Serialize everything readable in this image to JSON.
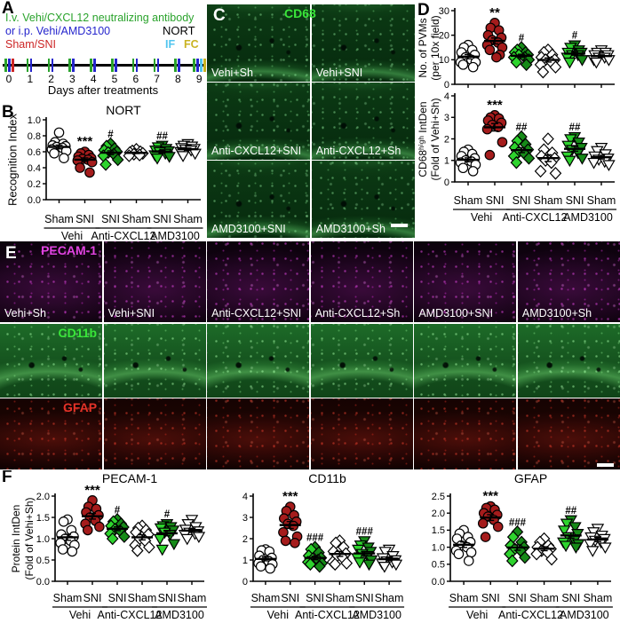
{
  "panel_a": {
    "label": "A",
    "line1": "I.v. Vehi/CXCL12 neutralizing antibody",
    "line2": "or i.p. Vehi/AMD3100",
    "nort_label": "NORT",
    "line3": "Sham/SNI",
    "if_label": "IF",
    "fc_label": "FC",
    "days": [
      "0",
      "1",
      "2",
      "3",
      "4",
      "5",
      "6",
      "7",
      "8",
      "9"
    ],
    "xlabel": "Days after treatments",
    "colors": {
      "antibody": "#2aa32c",
      "amd": "#2525cd",
      "sni": "#cc2525",
      "if_tick": "#52c5ef",
      "fc_tick": "#c9b322",
      "nort": "#000000"
    }
  },
  "panel_b": {
    "label": "B"
  },
  "panel_c": {
    "label": "C",
    "marker": "CD68",
    "marker_color": "#39e639",
    "tiles": [
      "Vehi+Sh",
      "Vehi+SNI",
      "Anti-CXCL12+SNI",
      "Anti-CXCL12+Sh",
      "AMD3100+SNI",
      "AMD3100+Sh"
    ]
  },
  "panel_d": {
    "label": "D"
  },
  "panel_e": {
    "label": "E",
    "row_markers": [
      {
        "name": "PECAM-1",
        "color": "#e243e2"
      },
      {
        "name": "CD11b",
        "color": "#39e639"
      },
      {
        "name": "GFAP",
        "color": "#e53228"
      }
    ],
    "tiles": [
      "Vehi+Sh",
      "Vehi+SNI",
      "Anti-CXCL12+SNI",
      "Anti-CXCL12+Sh",
      "AMD3100+SNI",
      "AMD3100+Sh"
    ]
  },
  "panel_f": {
    "label": "F"
  },
  "colors": {
    "sni_fill": "#a51c1c",
    "green_dark": "#168a18",
    "green_bright": "#2ed32e",
    "open": "#ffffff"
  },
  "xaxis_pairs": [
    {
      "cols": [
        "Sham",
        "SNI"
      ],
      "treatment": "Vehi"
    },
    {
      "cols": [
        "SNI",
        "Sham"
      ],
      "treatment": "Anti-CXCL12"
    },
    {
      "cols": [
        "SNI",
        "Sham"
      ],
      "treatment": "AMD3100"
    }
  ],
  "chart_data": [
    {
      "id": "nort",
      "type": "scatter",
      "title": "NORT",
      "ylabel_lines": [
        "Recognition Index"
      ],
      "ylim": [
        0,
        1.0
      ],
      "yticks": [
        0,
        0.2,
        0.4,
        0.6,
        0.8,
        1.0
      ],
      "decimals": 1,
      "groups": [
        {
          "name": "Vehi+Sham",
          "marker": "circle",
          "fill": "open",
          "sig": "",
          "values": [
            0.84,
            0.72,
            0.7,
            0.68,
            0.67,
            0.66,
            0.65,
            0.63,
            0.61,
            0.58,
            0.52
          ]
        },
        {
          "name": "Vehi+SNI",
          "marker": "circle",
          "fill": "red",
          "sig": "***",
          "values": [
            0.6,
            0.58,
            0.56,
            0.54,
            0.52,
            0.51,
            0.5,
            0.49,
            0.47,
            0.4,
            0.34
          ]
        },
        {
          "name": "Anti-CXCL12+SNI",
          "marker": "diamond",
          "fill": "green",
          "sig": "#",
          "values": [
            0.7,
            0.67,
            0.64,
            0.62,
            0.6,
            0.59,
            0.57,
            0.55,
            0.5,
            0.44
          ]
        },
        {
          "name": "Anti-CXCL12+Sham",
          "marker": "diamond",
          "fill": "open",
          "sig": "",
          "values": [
            0.63,
            0.61,
            0.6,
            0.59,
            0.58,
            0.57,
            0.56,
            0.55
          ]
        },
        {
          "name": "AMD3100+SNI",
          "marker": "tri",
          "fill": "green",
          "sig": "##",
          "values": [
            0.68,
            0.66,
            0.64,
            0.62,
            0.61,
            0.6,
            0.58,
            0.56,
            0.54,
            0.52
          ]
        },
        {
          "name": "AMD3100+Sham",
          "marker": "tri",
          "fill": "open",
          "sig": "",
          "values": [
            0.7,
            0.68,
            0.67,
            0.65,
            0.64,
            0.63,
            0.62,
            0.6,
            0.58,
            0.55
          ]
        }
      ]
    },
    {
      "id": "pvms",
      "type": "scatter",
      "title": "",
      "ylabel_lines": [
        "No. of PVMs",
        "(per 10x field)"
      ],
      "ylim": [
        0,
        30
      ],
      "yticks": [
        0,
        10,
        20,
        30
      ],
      "decimals": 0,
      "groups": [
        {
          "name": "Vehi+Sham",
          "marker": "circle",
          "fill": "open",
          "sig": "",
          "values": [
            16,
            15,
            14,
            13,
            12,
            11,
            10,
            9,
            9,
            8,
            7
          ]
        },
        {
          "name": "Vehi+SNI",
          "marker": "circle",
          "fill": "red",
          "sig": "**",
          "values": [
            25,
            23,
            22,
            20,
            19,
            18,
            17,
            16,
            15,
            14,
            12,
            11
          ]
        },
        {
          "name": "Anti-CXCL12+SNI",
          "marker": "diamond",
          "fill": "green",
          "sig": "#",
          "values": [
            15,
            14,
            13,
            13,
            12,
            12,
            11,
            11,
            10,
            9,
            8
          ]
        },
        {
          "name": "Anti-CXCL12+Sham",
          "marker": "diamond",
          "fill": "open",
          "sig": "",
          "values": [
            14,
            13,
            12,
            11,
            10,
            10,
            9,
            8,
            7,
            5
          ]
        },
        {
          "name": "AMD3100+SNI",
          "marker": "tri",
          "fill": "green",
          "sig": "#",
          "values": [
            16,
            15,
            14,
            13,
            13,
            12,
            12,
            11,
            10,
            9
          ]
        },
        {
          "name": "AMD3100+Sham",
          "marker": "tri",
          "fill": "open",
          "sig": "",
          "values": [
            14,
            13,
            13,
            12,
            12,
            11,
            11,
            10,
            10,
            9
          ]
        }
      ]
    },
    {
      "id": "cd68",
      "type": "scatter",
      "title": "",
      "ylabel_lines": [
        "CD68ʰⁱᵍʰ IntDen",
        "(Fold of Vehi+Sh)"
      ],
      "ylim": [
        0,
        4
      ],
      "yticks": [
        0,
        1,
        2,
        3,
        4
      ],
      "decimals": 0,
      "groups": [
        {
          "name": "Vehi+Sham",
          "marker": "circle",
          "fill": "open",
          "sig": "",
          "values": [
            1.5,
            1.4,
            1.3,
            1.2,
            1.1,
            1.0,
            0.95,
            0.9,
            0.8,
            0.65,
            0.5
          ]
        },
        {
          "name": "Vehi+SNI",
          "marker": "circle",
          "fill": "red",
          "sig": "***",
          "values": [
            3.1,
            3.0,
            2.95,
            2.85,
            2.75,
            2.65,
            2.55,
            2.45,
            1.85,
            1.25
          ]
        },
        {
          "name": "Anti-CXCL12+SNI",
          "marker": "diamond",
          "fill": "green",
          "sig": "##",
          "values": [
            2.1,
            1.9,
            1.75,
            1.6,
            1.5,
            1.4,
            1.3,
            1.2,
            1.1,
            0.9
          ]
        },
        {
          "name": "Anti-CXCL12+Sham",
          "marker": "diamond",
          "fill": "open",
          "sig": "",
          "values": [
            2.0,
            1.5,
            1.35,
            1.2,
            1.1,
            1.0,
            0.9,
            0.5,
            0.4
          ]
        },
        {
          "name": "AMD3100+SNI",
          "marker": "tri",
          "fill": "green",
          "sig": "##",
          "values": [
            2.1,
            2.0,
            1.85,
            1.7,
            1.6,
            1.5,
            1.35,
            1.2,
            1.1,
            1.0
          ]
        },
        {
          "name": "AMD3100+Sham",
          "marker": "tri",
          "fill": "open",
          "sig": "",
          "values": [
            1.6,
            1.45,
            1.3,
            1.2,
            1.1,
            1.05,
            0.95,
            0.9,
            0.8
          ]
        }
      ]
    },
    {
      "id": "pecam",
      "type": "scatter",
      "title": "PECAM-1",
      "ylabel_lines": [
        "Protein IntDen",
        "(Fold of Vehi+Sh)"
      ],
      "ylim": [
        0,
        2.0
      ],
      "yticks": [
        0,
        0.5,
        1.0,
        1.5,
        2.0
      ],
      "decimals": 1,
      "groups": [
        {
          "name": "Vehi+Sham",
          "marker": "circle",
          "fill": "open",
          "sig": "",
          "values": [
            1.45,
            1.4,
            1.2,
            1.1,
            1.05,
            1.0,
            0.95,
            0.9,
            0.85,
            0.75,
            0.7
          ]
        },
        {
          "name": "Vehi+SNI",
          "marker": "circle",
          "fill": "red",
          "sig": "***",
          "values": [
            1.9,
            1.75,
            1.7,
            1.62,
            1.55,
            1.5,
            1.42,
            1.35,
            1.28,
            1.2
          ]
        },
        {
          "name": "Anti-CXCL12+SNI",
          "marker": "diamond",
          "fill": "green",
          "sig": "#",
          "values": [
            1.45,
            1.4,
            1.35,
            1.3,
            1.27,
            1.22,
            1.18,
            1.12,
            1.05,
            1.0
          ]
        },
        {
          "name": "Anti-CXCL12+Sham",
          "marker": "diamond",
          "fill": "open",
          "sig": "",
          "values": [
            1.3,
            1.25,
            1.2,
            1.15,
            1.1,
            1.0,
            0.95,
            0.85,
            0.8,
            0.72
          ]
        },
        {
          "name": "AMD3100+SNI",
          "marker": "tri",
          "fill": "green",
          "sig": "#",
          "values": [
            1.35,
            1.3,
            1.28,
            1.25,
            1.2,
            1.15,
            1.1,
            1.0,
            0.88,
            0.75
          ]
        },
        {
          "name": "AMD3100+Sham",
          "marker": "tri",
          "fill": "open",
          "sig": "",
          "values": [
            1.45,
            1.35,
            1.28,
            1.22,
            1.18,
            1.15,
            1.12,
            1.1,
            1.05,
            1.0
          ]
        }
      ]
    },
    {
      "id": "cd11b",
      "type": "scatter",
      "title": "CD11b",
      "ylabel_lines": [],
      "ylim": [
        0,
        4
      ],
      "yticks": [
        0,
        1,
        2,
        3,
        4
      ],
      "decimals": 0,
      "groups": [
        {
          "name": "Vehi+Sham",
          "marker": "circle",
          "fill": "open",
          "sig": "",
          "values": [
            1.5,
            1.45,
            1.4,
            1.2,
            1.1,
            1.0,
            0.95,
            0.85,
            0.8,
            0.7,
            0.6
          ]
        },
        {
          "name": "Vehi+SNI",
          "marker": "circle",
          "fill": "red",
          "sig": "***",
          "values": [
            3.5,
            3.3,
            3.1,
            2.95,
            2.8,
            2.7,
            2.6,
            2.3,
            2.1,
            1.9,
            1.8
          ]
        },
        {
          "name": "Anti-CXCL12+SNI",
          "marker": "diamond",
          "fill": "green",
          "sig": "###",
          "values": [
            1.6,
            1.5,
            1.35,
            1.2,
            1.1,
            1.05,
            1.0,
            0.9,
            0.85,
            0.8,
            0.7
          ]
        },
        {
          "name": "Anti-CXCL12+Sham",
          "marker": "diamond",
          "fill": "open",
          "sig": "",
          "values": [
            1.9,
            1.8,
            1.6,
            1.4,
            1.3,
            1.2,
            1.1,
            0.9,
            0.85,
            0.8
          ]
        },
        {
          "name": "AMD3100+SNI",
          "marker": "tri",
          "fill": "green",
          "sig": "###",
          "values": [
            1.9,
            1.7,
            1.6,
            1.5,
            1.4,
            1.3,
            1.2,
            1.1,
            1.0,
            0.9,
            0.8
          ]
        },
        {
          "name": "AMD3100+Sham",
          "marker": "tri",
          "fill": "open",
          "sig": "",
          "values": [
            1.5,
            1.4,
            1.2,
            1.1,
            1.0,
            0.95,
            0.9,
            0.85,
            0.8,
            0.7
          ]
        }
      ]
    },
    {
      "id": "gfap",
      "type": "scatter",
      "title": "GFAP",
      "ylabel_lines": [],
      "ylim": [
        0,
        2.5
      ],
      "yticks": [
        0,
        0.5,
        1.0,
        1.5,
        2.0,
        2.5
      ],
      "decimals": 1,
      "groups": [
        {
          "name": "Vehi+Sham",
          "marker": "circle",
          "fill": "open",
          "sig": "",
          "values": [
            1.5,
            1.4,
            1.3,
            1.25,
            1.15,
            1.05,
            1.0,
            0.9,
            0.85,
            0.8,
            0.6
          ]
        },
        {
          "name": "Vehi+SNI",
          "marker": "circle",
          "fill": "red",
          "sig": "***",
          "values": [
            2.2,
            2.15,
            2.1,
            2.0,
            1.95,
            1.9,
            1.8,
            1.7,
            1.6,
            1.3
          ]
        },
        {
          "name": "Anti-CXCL12+SNI",
          "marker": "diamond",
          "fill": "green",
          "sig": "###",
          "values": [
            1.45,
            1.3,
            1.15,
            1.05,
            1.0,
            0.95,
            0.9,
            0.8,
            0.7,
            0.6
          ]
        },
        {
          "name": "Anti-CXCL12+Sham",
          "marker": "diamond",
          "fill": "open",
          "sig": "",
          "values": [
            1.25,
            1.15,
            1.05,
            1.0,
            0.95,
            0.9,
            0.85,
            0.8,
            0.65
          ]
        },
        {
          "name": "AMD3100+SNI",
          "marker": "tri",
          "fill": "green",
          "sig": "##",
          "values": [
            1.8,
            1.7,
            1.6,
            1.5,
            1.4,
            1.3,
            1.2,
            1.15,
            1.1,
            1.05,
            1.0
          ]
        },
        {
          "name": "AMD3100+Sham",
          "marker": "tri",
          "fill": "open",
          "sig": "",
          "values": [
            1.55,
            1.45,
            1.35,
            1.3,
            1.25,
            1.2,
            1.15,
            1.1,
            1.0,
            0.9
          ]
        }
      ]
    }
  ]
}
